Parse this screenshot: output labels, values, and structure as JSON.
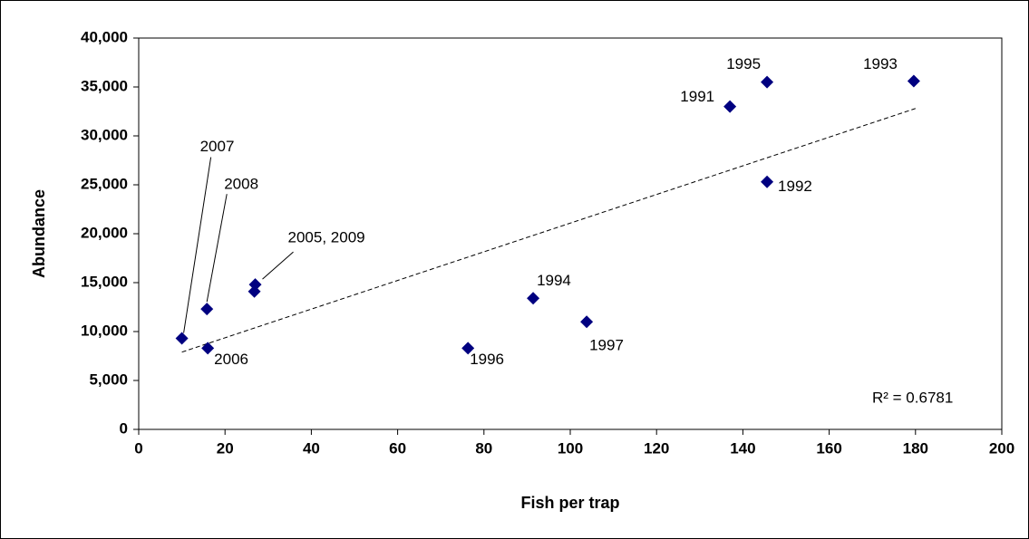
{
  "chart_data": {
    "type": "scatter",
    "x_label": "Fish per trap",
    "y_label": "Abundance",
    "series": [
      {
        "color": "#000080",
        "x": [
          10,
          15.8,
          16,
          27,
          26.8,
          76.3,
          91.4,
          103.8,
          137,
          145.6,
          145.6,
          179.6
        ],
        "values": [
          9300,
          12300,
          8300,
          14800,
          14100,
          8300,
          13400,
          11000,
          33000,
          35500,
          25300,
          35600
        ],
        "point_labels": [
          "2007",
          "2008",
          "2006",
          "2005, 2009",
          null,
          "1996",
          "1994",
          "1997",
          "1991",
          "1995",
          "1992",
          "1993"
        ]
      }
    ],
    "trendline": {
      "x": [
        10,
        180
      ],
      "values": [
        7900,
        32800
      ],
      "color": "#000000"
    },
    "annotation": "R² = 0.6781",
    "xlim": [
      0,
      200
    ],
    "xticks": [
      0,
      20,
      40,
      60,
      80,
      100,
      120,
      140,
      160,
      180,
      200
    ],
    "ylim": [
      0,
      40000
    ],
    "yticks": [
      0,
      {
        "value": 5000,
        "label": "5,000"
      },
      {
        "value": 10000,
        "label": "10,000"
      },
      {
        "value": 15000,
        "label": "15,000"
      },
      {
        "value": 20000,
        "label": "20,000"
      },
      {
        "value": 25000,
        "label": "25,000"
      },
      {
        "value": 30000,
        "label": "30,000"
      },
      {
        "value": 35000,
        "label": "35,000"
      },
      {
        "value": 40000,
        "label": "40,000"
      }
    ],
    "grid": false
  }
}
